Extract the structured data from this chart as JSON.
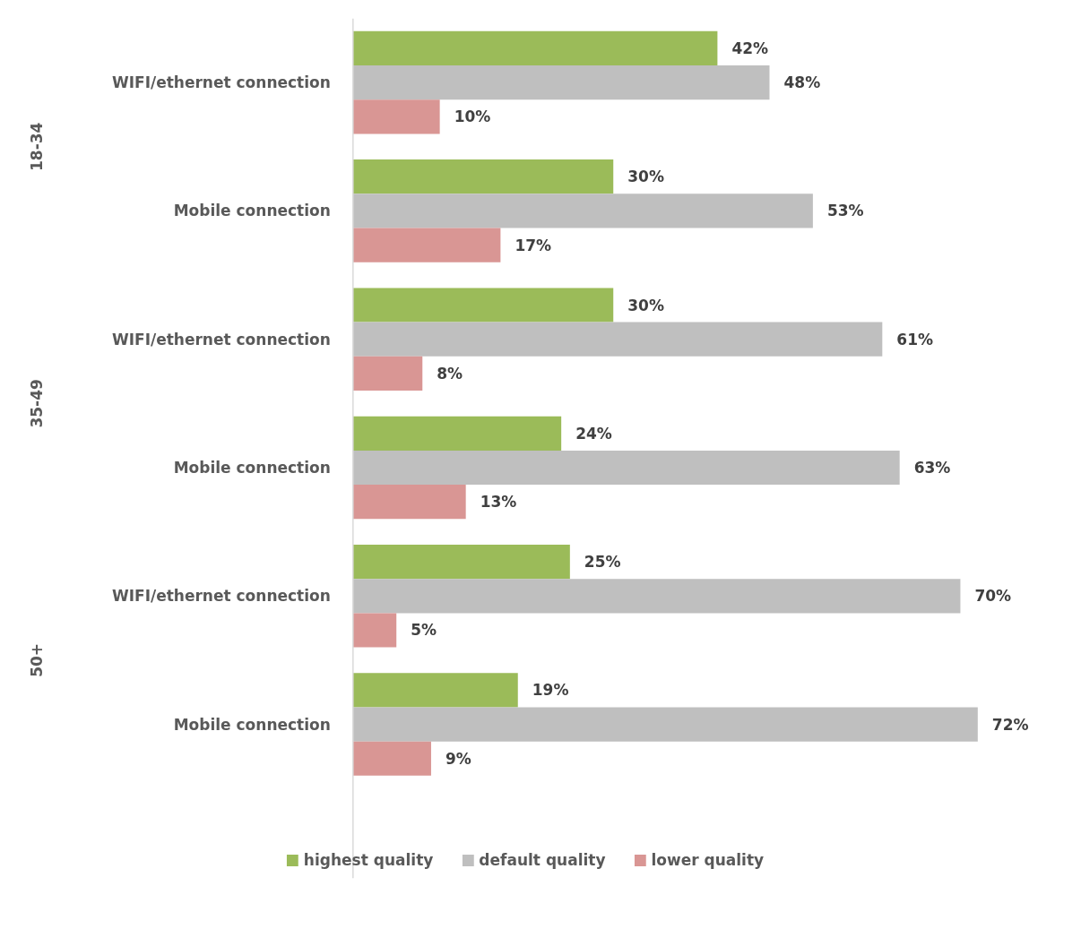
{
  "chart_data": {
    "type": "bar",
    "orientation": "horizontal",
    "categories": [
      "WIFI/ethernet connection",
      "Mobile connection",
      "WIFI/ethernet connection",
      "Mobile connection",
      "WIFI/ethernet connection",
      "Mobile connection"
    ],
    "series": [
      {
        "name": "highest quality",
        "color": "#9bbb59",
        "values": [
          42,
          30,
          30,
          24,
          25,
          19
        ],
        "value_labels": [
          "42%",
          "30%",
          "30%",
          "24%",
          "25%",
          "19%"
        ]
      },
      {
        "name": "default quality",
        "color": "#bfbfbf",
        "values": [
          48,
          53,
          61,
          63,
          70,
          72
        ],
        "value_labels": [
          "48%",
          "53%",
          "61%",
          "63%",
          "70%",
          "72%"
        ]
      },
      {
        "name": "lower quality",
        "color": "#d99694",
        "values": [
          10,
          17,
          8,
          13,
          5,
          9
        ],
        "value_labels": [
          "10%",
          "17%",
          "8%",
          "13%",
          "5%",
          "9%"
        ]
      }
    ],
    "annotations": [
      "18-34",
      "35-49",
      "50+"
    ],
    "legend": "bottom",
    "grid": false
  }
}
